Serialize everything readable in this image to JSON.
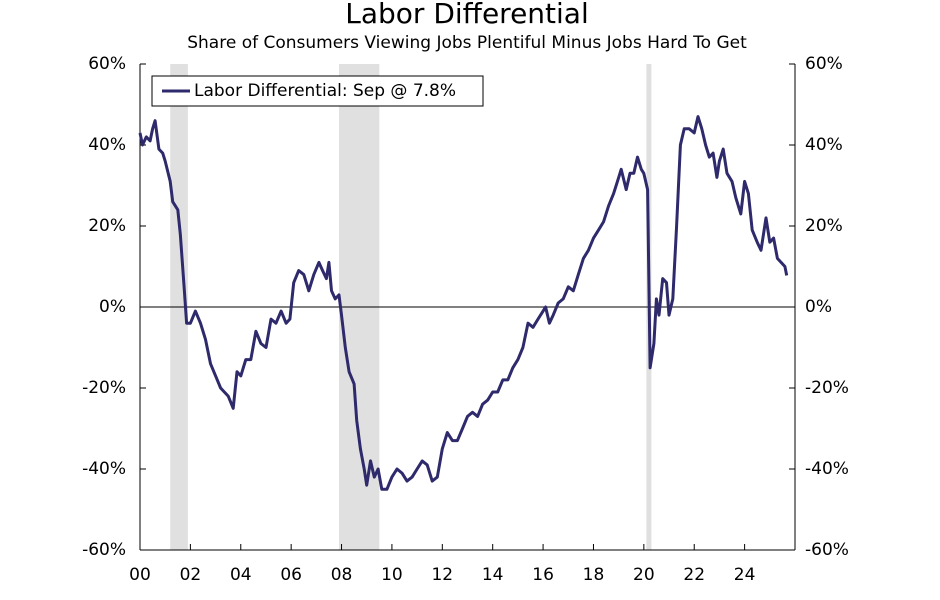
{
  "chart_data": {
    "type": "line",
    "title": "Labor Differential",
    "subtitle": "Share of Consumers Viewing Jobs Plentiful Minus Jobs Hard To Get",
    "x": [
      2000.0,
      2000.1,
      2000.25,
      2000.4,
      2000.5,
      2000.6,
      2000.75,
      2000.9,
      2001.0,
      2001.2,
      2001.3,
      2001.5,
      2001.6,
      2001.75,
      2001.85,
      2002.0,
      2002.2,
      2002.4,
      2002.6,
      2002.8,
      2003.0,
      2003.2,
      2003.5,
      2003.7,
      2003.85,
      2004.0,
      2004.2,
      2004.4,
      2004.6,
      2004.8,
      2005.0,
      2005.2,
      2005.4,
      2005.6,
      2005.8,
      2005.95,
      2006.1,
      2006.3,
      2006.5,
      2006.7,
      2006.9,
      2007.1,
      2007.25,
      2007.4,
      2007.5,
      2007.6,
      2007.75,
      2007.9,
      2008.0,
      2008.15,
      2008.3,
      2008.5,
      2008.6,
      2008.75,
      2008.9,
      2009.0,
      2009.15,
      2009.3,
      2009.45,
      2009.6,
      2009.8,
      2010.0,
      2010.2,
      2010.4,
      2010.6,
      2010.8,
      2011.0,
      2011.2,
      2011.4,
      2011.6,
      2011.8,
      2012.0,
      2012.2,
      2012.4,
      2012.6,
      2012.8,
      2013.0,
      2013.2,
      2013.4,
      2013.6,
      2013.8,
      2014.0,
      2014.2,
      2014.4,
      2014.6,
      2014.8,
      2015.0,
      2015.2,
      2015.4,
      2015.6,
      2015.8,
      2016.0,
      2016.1,
      2016.25,
      2016.4,
      2016.6,
      2016.8,
      2017.0,
      2017.2,
      2017.4,
      2017.6,
      2017.8,
      2018.0,
      2018.2,
      2018.4,
      2018.6,
      2018.8,
      2019.0,
      2019.1,
      2019.3,
      2019.45,
      2019.6,
      2019.75,
      2019.9,
      2020.0,
      2020.15,
      2020.25,
      2020.4,
      2020.5,
      2020.6,
      2020.75,
      2020.9,
      2021.0,
      2021.15,
      2021.3,
      2021.45,
      2021.6,
      2021.8,
      2022.0,
      2022.15,
      2022.3,
      2022.45,
      2022.6,
      2022.75,
      2022.9,
      2023.0,
      2023.15,
      2023.3,
      2023.5,
      2023.65,
      2023.85,
      2024.0,
      2024.15,
      2024.3,
      2024.5,
      2024.65,
      2024.85,
      2025.0,
      2025.15,
      2025.3,
      2025.45,
      2025.6,
      2025.67
    ],
    "series": [
      {
        "name": "Labor Differential: Sep @ 7.8%",
        "color": "#2e2a6b",
        "values": [
          43,
          40,
          42,
          41,
          44,
          46,
          39,
          38,
          36,
          31,
          26,
          24,
          18,
          5,
          -4,
          -4,
          -1,
          -4,
          -8,
          -14,
          -17,
          -20,
          -22,
          -25,
          -16,
          -17,
          -13,
          -13,
          -6,
          -9,
          -10,
          -3,
          -4,
          -1,
          -4,
          -3,
          6,
          9,
          8,
          4,
          8,
          11,
          9,
          7,
          11,
          4,
          2,
          3,
          -2,
          -10,
          -16,
          -19,
          -28,
          -35,
          -40,
          -44,
          -38,
          -42,
          -40,
          -45,
          -45,
          -42,
          -40,
          -41,
          -43,
          -42,
          -40,
          -38,
          -39,
          -43,
          -42,
          -35,
          -31,
          -33,
          -33,
          -30,
          -27,
          -26,
          -27,
          -24,
          -23,
          -21,
          -21,
          -18,
          -18,
          -15,
          -13,
          -10,
          -4,
          -5,
          -3,
          -1,
          0,
          -4,
          -2,
          1,
          2,
          5,
          4,
          8,
          12,
          14,
          17,
          19,
          21,
          25,
          28,
          32,
          34,
          29,
          33,
          33,
          37,
          34,
          33,
          29,
          -15,
          -9,
          2,
          -2,
          7,
          6,
          -2,
          2,
          20,
          40,
          44,
          44,
          43,
          47,
          44,
          40,
          37,
          38,
          32,
          36,
          39,
          33,
          31,
          27,
          23,
          31,
          28,
          19,
          16,
          14,
          22,
          16,
          17,
          12,
          11,
          10,
          7.8
        ]
      }
    ],
    "recessions": [
      [
        2001.2,
        2001.9
      ],
      [
        2007.9,
        2009.5
      ],
      [
        2020.1,
        2020.3
      ]
    ],
    "recession_color": "#e0e0e0",
    "xlim": [
      2000,
      2026
    ],
    "xticks": [
      {
        "value": 2000,
        "label": "00"
      },
      {
        "value": 2002,
        "label": "02"
      },
      {
        "value": 2004,
        "label": "04"
      },
      {
        "value": 2006,
        "label": "06"
      },
      {
        "value": 2008,
        "label": "08"
      },
      {
        "value": 2010,
        "label": "10"
      },
      {
        "value": 2012,
        "label": "12"
      },
      {
        "value": 2014,
        "label": "14"
      },
      {
        "value": 2016,
        "label": "16"
      },
      {
        "value": 2018,
        "label": "18"
      },
      {
        "value": 2020,
        "label": "20"
      },
      {
        "value": 2022,
        "label": "22"
      },
      {
        "value": 2024,
        "label": "24"
      }
    ],
    "ylim": [
      -60,
      60
    ],
    "yticks": [
      {
        "value": -60,
        "label": "-60%"
      },
      {
        "value": -40,
        "label": "-40%"
      },
      {
        "value": -20,
        "label": "-20%"
      },
      {
        "value": 0,
        "label": "0%"
      },
      {
        "value": 20,
        "label": "20%"
      },
      {
        "value": 40,
        "label": "40%"
      },
      {
        "value": 60,
        "label": "60%"
      }
    ],
    "y2lim": [
      -60,
      60
    ],
    "y2ticks": [
      {
        "value": -60,
        "label": "-60%"
      },
      {
        "value": -40,
        "label": "-40%"
      },
      {
        "value": -20,
        "label": "-20%"
      },
      {
        "value": 0,
        "label": "0%"
      },
      {
        "value": 20,
        "label": "20%"
      },
      {
        "value": 40,
        "label": "40%"
      },
      {
        "value": 60,
        "label": "60%"
      }
    ],
    "legend": "upper left"
  }
}
